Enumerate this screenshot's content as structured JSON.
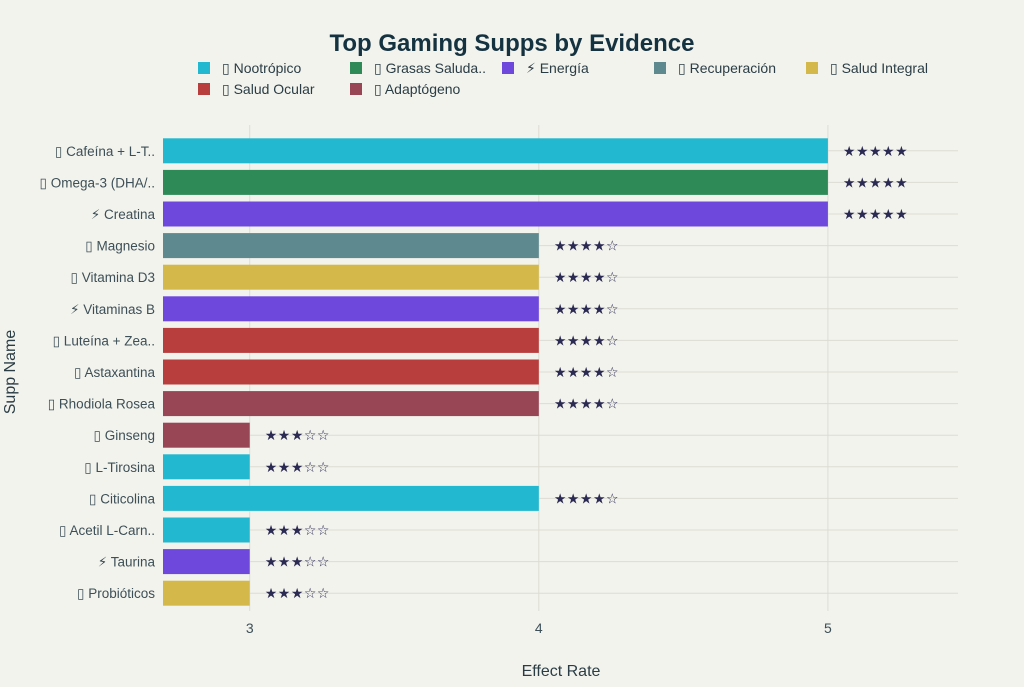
{
  "chart_data": {
    "type": "bar",
    "orientation": "horizontal",
    "title": "Top Gaming Supps by Evidence",
    "xlabel": "Effect Rate",
    "ylabel": "Supp Name",
    "xlim": [
      2.7,
      5.45
    ],
    "xticks": [
      3,
      4,
      5
    ],
    "grid": true,
    "legend_position": "top",
    "legend": [
      {
        "label": "▯ Nootrópico",
        "color": "#22b9d0"
      },
      {
        "label": "▯ Grasas Saluda..",
        "color": "#2e8b57"
      },
      {
        "label": "⚡ Energía",
        "color": "#6e48dd"
      },
      {
        "label": "▯ Recuperación",
        "color": "#5e8a8f"
      },
      {
        "label": "▯ Salud Integral",
        "color": "#d4b94a"
      },
      {
        "label": "▯ Salud Ocular",
        "color": "#b73e3c"
      },
      {
        "label": "▯ Adaptógeno",
        "color": "#984556"
      }
    ],
    "bars": [
      {
        "label": "▯ Cafeína + L-T..",
        "value": 5,
        "category": 0,
        "stars": "★★★★★"
      },
      {
        "label": "▯ Omega-3 (DHA/..",
        "value": 5,
        "category": 1,
        "stars": "★★★★★"
      },
      {
        "label": "⚡ Creatina",
        "value": 5,
        "category": 2,
        "stars": "★★★★★"
      },
      {
        "label": "▯ Magnesio",
        "value": 4,
        "category": 3,
        "stars": "★★★★☆"
      },
      {
        "label": "▯ Vitamina D3",
        "value": 4,
        "category": 4,
        "stars": "★★★★☆"
      },
      {
        "label": "⚡ Vitaminas B",
        "value": 4,
        "category": 2,
        "stars": "★★★★☆"
      },
      {
        "label": "▯ Luteína + Zea..",
        "value": 4,
        "category": 5,
        "stars": "★★★★☆"
      },
      {
        "label": "▯ Astaxantina",
        "value": 4,
        "category": 5,
        "stars": "★★★★☆"
      },
      {
        "label": "▯ Rhodiola Rosea",
        "value": 4,
        "category": 6,
        "stars": "★★★★☆"
      },
      {
        "label": "▯ Ginseng",
        "value": 3,
        "category": 6,
        "stars": "★★★☆☆"
      },
      {
        "label": "▯ L-Tirosina",
        "value": 3,
        "category": 0,
        "stars": "★★★☆☆"
      },
      {
        "label": "▯ Citicolina",
        "value": 4,
        "category": 0,
        "stars": "★★★★☆"
      },
      {
        "label": "▯ Acetil L-Carn..",
        "value": 3,
        "category": 0,
        "stars": "★★★☆☆"
      },
      {
        "label": "⚡ Taurina",
        "value": 3,
        "category": 2,
        "stars": "★★★☆☆"
      },
      {
        "label": "▯ Probióticos",
        "value": 3,
        "category": 4,
        "stars": "★★★☆☆"
      }
    ]
  }
}
